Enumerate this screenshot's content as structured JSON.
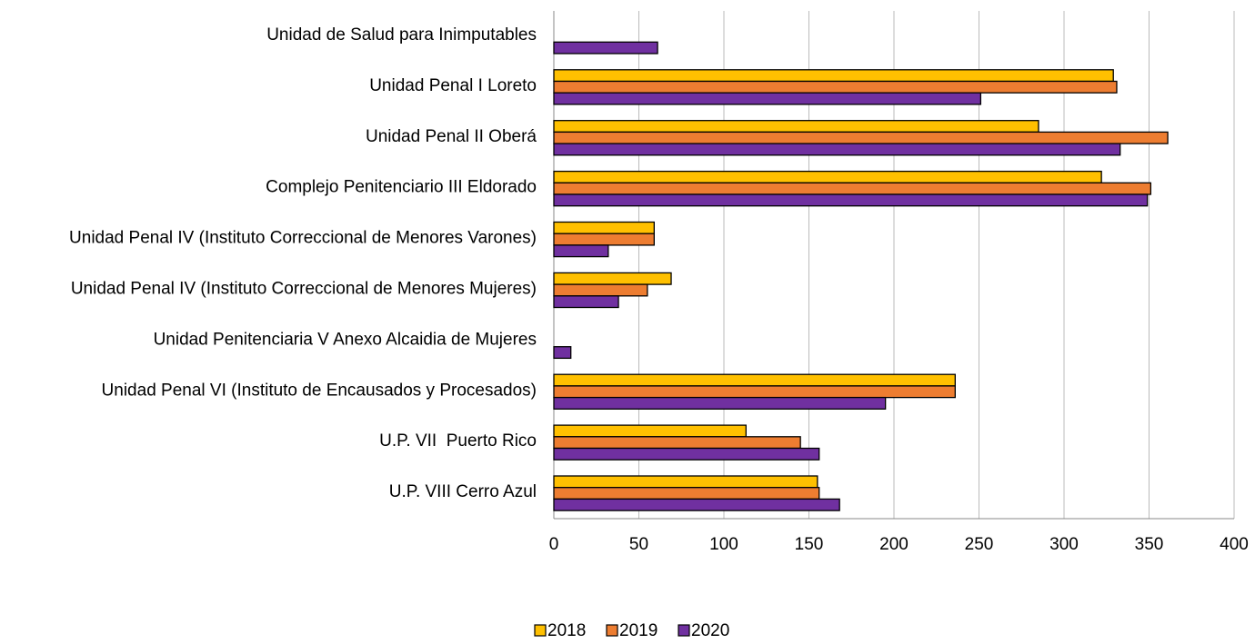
{
  "chart_data": {
    "type": "barh",
    "categories": [
      "Unidad de Salud para Inimputables",
      "Unidad Penal I Loreto",
      "Unidad Penal II Oberá",
      "Complejo Penitenciario III Eldorado",
      "Unidad Penal IV (Instituto Correccional de Menores Varones)",
      "Unidad Penal IV (Instituto Correccional de Menores Mujeres)",
      "Unidad Penitenciaria V Anexo Alcaidia de Mujeres",
      "Unidad Penal VI (Instituto de Encausados y Procesados)",
      "U.P. VII  Puerto Rico",
      "U.P. VIII Cerro Azul"
    ],
    "series": [
      {
        "name": "2018",
        "color": "#ffc000",
        "values": [
          null,
          329,
          285,
          322,
          59,
          69,
          null,
          236,
          113,
          155
        ]
      },
      {
        "name": "2019",
        "color": "#ed7d31",
        "values": [
          null,
          331,
          361,
          351,
          59,
          55,
          null,
          236,
          145,
          156
        ]
      },
      {
        "name": "2020",
        "color": "#7030a0",
        "values": [
          61,
          251,
          333,
          349,
          32,
          38,
          10,
          195,
          156,
          168
        ]
      }
    ],
    "xlim": [
      0,
      400
    ],
    "xticks": [
      0,
      50,
      100,
      150,
      200,
      250,
      300,
      350,
      400
    ],
    "grid": true,
    "legend": "bottom"
  }
}
